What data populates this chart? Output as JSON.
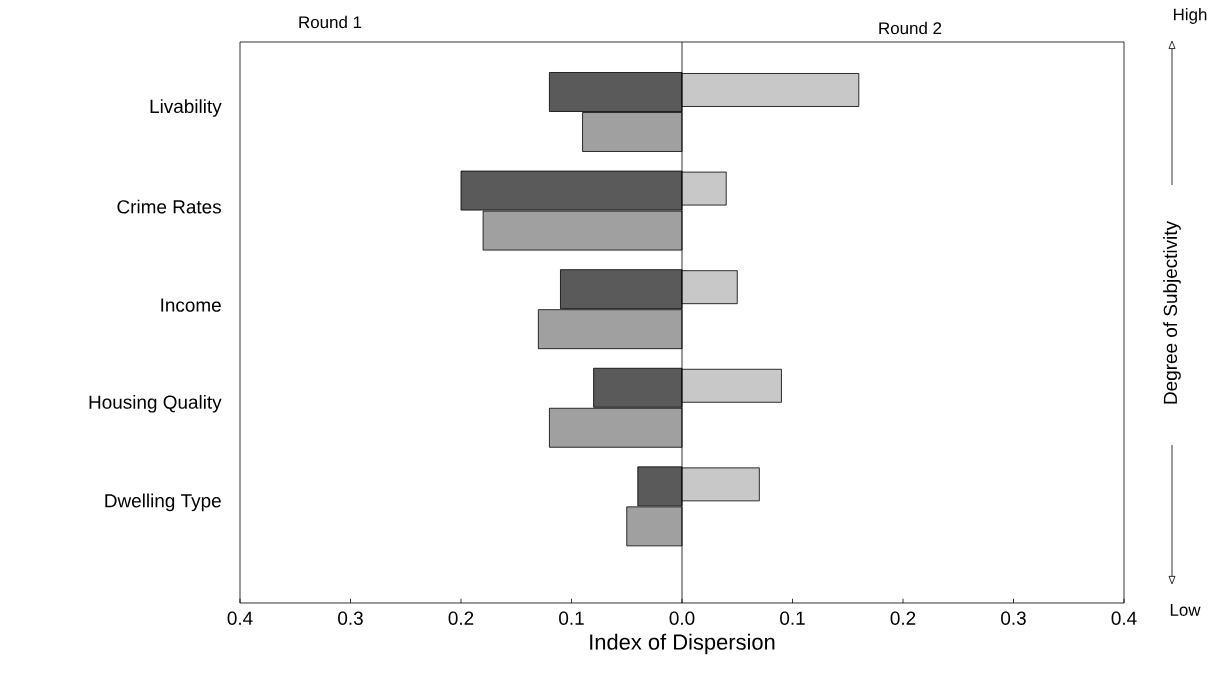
{
  "chart_data": {
    "type": "bar",
    "orientation": "horizontal",
    "categories": [
      "Livability",
      "Crime Rates",
      "Income",
      "Housing Quality",
      "Dwelling Type"
    ],
    "series": [
      {
        "color": "#5a5a5a",
        "values": [
          -0.12,
          -0.2,
          -0.11,
          -0.08,
          -0.04
        ]
      },
      {
        "color": "#a0a0a0",
        "values": [
          -0.09,
          -0.18,
          -0.13,
          -0.12,
          -0.05
        ]
      },
      {
        "color": "#c8c8c8",
        "values": [
          0.16,
          0.04,
          0.05,
          0.09,
          0.07
        ]
      }
    ],
    "xlabel": "Index of Dispersion",
    "y2label": "Degree of Subjectivity",
    "xlim": [
      -0.4,
      0.4
    ],
    "xticks": [
      {
        "value": -0.4,
        "label": "0.4"
      },
      {
        "value": -0.3,
        "label": "0.3"
      },
      {
        "value": -0.2,
        "label": "0.2"
      },
      {
        "value": -0.1,
        "label": "0.1"
      },
      {
        "value": 0,
        "label": "0.0"
      },
      0.1,
      0.2,
      0.3,
      0.4
    ],
    "ref_lines": [
      {
        "axis": "x",
        "value": 0
      }
    ],
    "annotations": [
      "Round 1",
      "Round 2",
      "High",
      "Low"
    ],
    "grid": false
  }
}
